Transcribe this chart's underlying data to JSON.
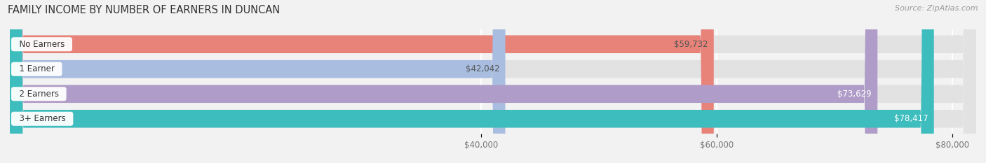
{
  "title": "FAMILY INCOME BY NUMBER OF EARNERS IN DUNCAN",
  "source": "Source: ZipAtlas.com",
  "categories": [
    "No Earners",
    "1 Earner",
    "2 Earners",
    "3+ Earners"
  ],
  "values": [
    59732,
    42042,
    73629,
    78417
  ],
  "labels": [
    "$59,732",
    "$42,042",
    "$73,629",
    "$78,417"
  ],
  "bar_colors": [
    "#e8837a",
    "#a8bde0",
    "#b09cc8",
    "#3dbdbd"
  ],
  "label_colors": [
    "#555555",
    "#555555",
    "#ffffff",
    "#ffffff"
  ],
  "xlim_min": 0,
  "xlim_max": 82000,
  "xticks": [
    40000,
    60000,
    80000
  ],
  "xtick_labels": [
    "$40,000",
    "$60,000",
    "$80,000"
  ],
  "bg_color": "#f2f2f2",
  "bar_bg_color": "#e2e2e2",
  "bar_height": 0.72,
  "title_fontsize": 10.5,
  "source_fontsize": 8,
  "label_fontsize": 8.5,
  "tick_fontsize": 8.5,
  "category_fontsize": 8.5
}
